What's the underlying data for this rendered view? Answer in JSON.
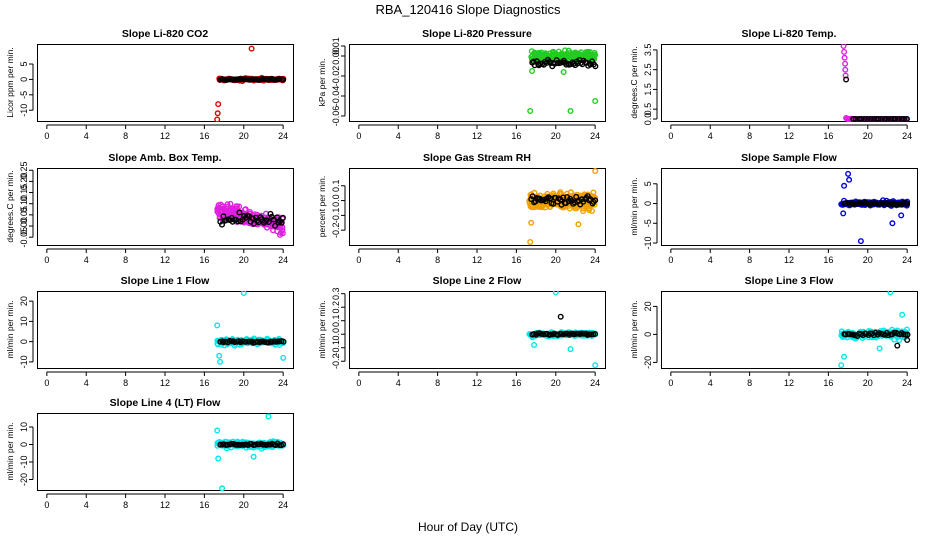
{
  "figure": {
    "title": "RBA_120416  Slope Diagnostics",
    "xlabel": "Hour of Day (UTC)",
    "colors": {
      "red": "#e00000",
      "green": "#22cc22",
      "magenta": "#e020e0",
      "orange": "#f0a000",
      "blue": "#0000dd",
      "cyan": "#00e8e8",
      "black": "#000000"
    }
  },
  "chart_data": [
    {
      "type": "scatter",
      "title": "Slope Li-820 CO2",
      "ylabel": "Licor ppm per min.",
      "xlim": [
        -1,
        25
      ],
      "ylim": [
        -13.5,
        11.5
      ],
      "xticks": [
        "0",
        "4",
        "8",
        "12",
        "16",
        "20",
        "24"
      ],
      "xtick_values": [
        0,
        4,
        8,
        12,
        16,
        20,
        24
      ],
      "yticks": [
        "-10",
        "-5",
        "0",
        "5"
      ],
      "ytick_values": [
        -10,
        -5,
        0,
        5
      ],
      "series": [
        {
          "name": "primary",
          "color": "red",
          "x_range": [
            17.5,
            24
          ],
          "y_center": 0,
          "y_spread": 0.6,
          "count": 90,
          "extra": [
            [
              17.3,
              -13
            ],
            [
              17.35,
              -11
            ],
            [
              17.4,
              -8
            ],
            [
              20.8,
              10
            ]
          ]
        },
        {
          "name": "reference",
          "color": "black",
          "x_range": [
            17.6,
            24
          ],
          "y_center": 0,
          "y_spread": 0.3,
          "count": 40,
          "extra": []
        }
      ]
    },
    {
      "type": "scatter",
      "title": "Slope Li-820 Pressure",
      "ylabel": "kPa per min.",
      "xlim": [
        -1,
        25
      ],
      "ylim": [
        -0.065,
        0.012
      ],
      "xticks": [
        "0",
        "4",
        "8",
        "12",
        "16",
        "20",
        "24"
      ],
      "xtick_values": [
        0,
        4,
        8,
        12,
        16,
        20,
        24
      ],
      "yticks": [
        "-0.06",
        "-0.04",
        "-0.02",
        "0.00",
        "0.01"
      ],
      "ytick_values": [
        -0.06,
        -0.04,
        -0.02,
        0.0,
        0.01
      ],
      "series": [
        {
          "name": "primary",
          "color": "green",
          "x_range": [
            17.5,
            24
          ],
          "y_center": 0.0,
          "y_spread": 0.008,
          "count": 160,
          "extra": [
            [
              17.4,
              -0.055
            ],
            [
              21.5,
              -0.055
            ],
            [
              24,
              -0.045
            ],
            [
              17.6,
              -0.015
            ],
            [
              20.8,
              -0.016
            ]
          ]
        },
        {
          "name": "reference",
          "color": "black",
          "x_range": [
            17.6,
            24
          ],
          "y_center": -0.007,
          "y_spread": 0.006,
          "count": 45,
          "extra": []
        }
      ]
    },
    {
      "type": "scatter",
      "title": "Slope Li-820 Temp.",
      "ylabel": "degrees.C per min.",
      "xlim": [
        -1,
        25
      ],
      "ylim": [
        -0.1,
        3.8
      ],
      "xticks": [
        "0",
        "4",
        "8",
        "12",
        "16",
        "20",
        "24"
      ],
      "xtick_values": [
        0,
        4,
        8,
        12,
        16,
        20,
        24
      ],
      "yticks": [
        "0.0",
        "0.5",
        "1.5",
        "2.5",
        "3.5"
      ],
      "ytick_values": [
        0.0,
        0.5,
        1.5,
        2.5,
        3.5
      ],
      "series": [
        {
          "name": "primary",
          "color": "magenta",
          "x_range": [
            17.9,
            24
          ],
          "y_center": 0,
          "y_spread": 0.0,
          "count": 60,
          "extra": [
            [
              17.55,
              3.7
            ],
            [
              17.6,
              3.4
            ],
            [
              17.65,
              3.1
            ],
            [
              17.7,
              2.8
            ],
            [
              17.72,
              2.5
            ],
            [
              17.75,
              2.2
            ],
            [
              17.8,
              0.05
            ]
          ]
        },
        {
          "name": "reference",
          "color": "black",
          "x_range": [
            18.5,
            24
          ],
          "y_center": 0,
          "y_spread": 0.0,
          "count": 20,
          "extra": [
            [
              17.8,
              2.0
            ]
          ]
        }
      ]
    },
    {
      "type": "scatter",
      "title": "Slope Amb. Box Temp.",
      "ylabel": "degrees.C per min.",
      "xlim": [
        -1,
        25
      ],
      "ylim": [
        -0.085,
        0.26
      ],
      "xticks": [
        "0",
        "4",
        "8",
        "12",
        "16",
        "20",
        "24"
      ],
      "xtick_values": [
        0,
        4,
        8,
        12,
        16,
        20,
        24
      ],
      "yticks": [
        "-0.05",
        "0.00",
        "0.05",
        "0.10",
        "0.15",
        "0.20",
        "0.25"
      ],
      "ytick_values": [
        -0.05,
        0.0,
        0.05,
        0.1,
        0.15,
        0.2,
        0.25
      ],
      "series": [
        {
          "name": "primary",
          "color": "magenta",
          "x_range": [
            17.3,
            24
          ],
          "y_center": 0.07,
          "y_spread": 0.06,
          "count": 190,
          "trend": -0.01,
          "extra": []
        },
        {
          "name": "reference",
          "color": "black",
          "x_range": [
            17.6,
            24
          ],
          "y_center": 0.03,
          "y_spread": 0.05,
          "count": 40,
          "extra": []
        }
      ]
    },
    {
      "type": "scatter",
      "title": "Slope Gas Stream RH",
      "ylabel": "percent per min.",
      "xlim": [
        -1,
        25
      ],
      "ylim": [
        -0.3,
        0.22
      ],
      "xticks": [
        "0",
        "4",
        "8",
        "12",
        "16",
        "20",
        "24"
      ],
      "xtick_values": [
        0,
        4,
        8,
        12,
        16,
        20,
        24
      ],
      "yticks": [
        "-0.2",
        "-0.1",
        "0.0",
        "0.1"
      ],
      "ytick_values": [
        -0.2,
        -0.1,
        0.0,
        0.1
      ],
      "series": [
        {
          "name": "primary",
          "color": "orange",
          "x_range": [
            17.3,
            24
          ],
          "y_center": 0.0,
          "y_spread": 0.09,
          "count": 260,
          "extra": [
            [
              17.4,
              -0.28
            ],
            [
              17.5,
              -0.15
            ],
            [
              24,
              0.2
            ],
            [
              22.3,
              -0.16
            ]
          ]
        },
        {
          "name": "reference",
          "color": "black",
          "x_range": [
            17.5,
            24
          ],
          "y_center": 0.0,
          "y_spread": 0.07,
          "count": 45,
          "extra": []
        }
      ]
    },
    {
      "type": "scatter",
      "title": "Slope Sample Flow",
      "ylabel": "ml/min per min.",
      "xlim": [
        -1,
        25
      ],
      "ylim": [
        -10.5,
        9
      ],
      "xticks": [
        "0",
        "4",
        "8",
        "12",
        "16",
        "20",
        "24"
      ],
      "xtick_values": [
        0,
        4,
        8,
        12,
        16,
        20,
        24
      ],
      "yticks": [
        "-10",
        "-5",
        "0",
        "5"
      ],
      "ytick_values": [
        -10,
        -5,
        0,
        5
      ],
      "series": [
        {
          "name": "primary",
          "color": "blue",
          "x_range": [
            17.3,
            24
          ],
          "y_center": 0.0,
          "y_spread": 0.9,
          "count": 150,
          "extra": [
            [
              18.0,
              7.5
            ],
            [
              18.1,
              6.0
            ],
            [
              17.6,
              4.5
            ],
            [
              17.5,
              -2.5
            ],
            [
              19.3,
              -9.5
            ],
            [
              22.5,
              -5
            ],
            [
              23.4,
              -3
            ]
          ]
        },
        {
          "name": "reference",
          "color": "black",
          "x_range": [
            17.6,
            24
          ],
          "y_center": 0.0,
          "y_spread": 0.3,
          "count": 40,
          "extra": []
        }
      ]
    },
    {
      "type": "scatter",
      "title": "Slope Line 1 Flow",
      "ylabel": "ml/min per min.",
      "xlim": [
        -1,
        25
      ],
      "ylim": [
        -13,
        25
      ],
      "xticks": [
        "0",
        "4",
        "8",
        "12",
        "16",
        "20",
        "24"
      ],
      "xtick_values": [
        0,
        4,
        8,
        12,
        16,
        20,
        24
      ],
      "yticks": [
        "-10",
        "0",
        "10",
        "20"
      ],
      "ytick_values": [
        -10,
        0,
        10,
        20
      ],
      "series": [
        {
          "name": "primary",
          "color": "cyan",
          "x_range": [
            17.3,
            24
          ],
          "y_center": 0.0,
          "y_spread": 2.5,
          "count": 140,
          "extra": [
            [
              20.0,
              24
            ],
            [
              17.3,
              8
            ],
            [
              17.5,
              -7
            ],
            [
              17.6,
              -10
            ],
            [
              24.0,
              -8
            ]
          ]
        },
        {
          "name": "reference",
          "color": "black",
          "x_range": [
            17.6,
            24
          ],
          "y_center": 0.0,
          "y_spread": 0.6,
          "count": 35,
          "extra": []
        }
      ]
    },
    {
      "type": "scatter",
      "title": "Slope Line 2 Flow",
      "ylabel": "ml/min per min.",
      "xlim": [
        -1,
        25
      ],
      "ylim": [
        -0.25,
        0.32
      ],
      "xticks": [
        "0",
        "4",
        "8",
        "12",
        "16",
        "20",
        "24"
      ],
      "xtick_values": [
        0,
        4,
        8,
        12,
        16,
        20,
        24
      ],
      "yticks": [
        "-0.2",
        "-0.1",
        "0.0",
        "0.1",
        "0.2",
        "0.3"
      ],
      "ytick_values": [
        -0.2,
        -0.1,
        0.0,
        0.1,
        0.2,
        0.3
      ],
      "series": [
        {
          "name": "primary",
          "color": "cyan",
          "x_range": [
            17.3,
            24
          ],
          "y_center": 0.0,
          "y_spread": 0.025,
          "count": 140,
          "extra": [
            [
              20.0,
              0.31
            ],
            [
              24.0,
              -0.23
            ],
            [
              17.8,
              -0.08
            ],
            [
              21.5,
              -0.11
            ]
          ]
        },
        {
          "name": "reference",
          "color": "black",
          "x_range": [
            17.6,
            24
          ],
          "y_center": 0.0,
          "y_spread": 0.01,
          "count": 35,
          "extra": [
            [
              20.5,
              0.13
            ]
          ]
        }
      ]
    },
    {
      "type": "scatter",
      "title": "Slope Line 3 Flow",
      "ylabel": "ml/min per min.",
      "xlim": [
        -1,
        25
      ],
      "ylim": [
        -24,
        31
      ],
      "xticks": [
        "0",
        "4",
        "8",
        "12",
        "16",
        "20",
        "24"
      ],
      "xtick_values": [
        0,
        4,
        8,
        12,
        16,
        20,
        24
      ],
      "yticks": [
        "-20",
        "0",
        "20"
      ],
      "ytick_values": [
        -20,
        0,
        20
      ],
      "series": [
        {
          "name": "primary",
          "color": "cyan",
          "x_range": [
            17.3,
            24
          ],
          "y_center": 0.0,
          "y_spread": 5.5,
          "count": 140,
          "extra": [
            [
              22.3,
              30
            ],
            [
              17.3,
              -22
            ],
            [
              17.6,
              -16
            ],
            [
              23.5,
              14
            ],
            [
              21.2,
              -10
            ]
          ]
        },
        {
          "name": "reference",
          "color": "black",
          "x_range": [
            17.6,
            24
          ],
          "y_center": 0.0,
          "y_spread": 2.5,
          "count": 35,
          "extra": [
            [
              23.0,
              -8
            ],
            [
              24.0,
              -4
            ]
          ]
        }
      ]
    },
    {
      "type": "scatter",
      "title": "Slope Line 4 (LT) Flow",
      "ylabel": "ml/min per min.",
      "xlim": [
        -1,
        25
      ],
      "ylim": [
        -26,
        18
      ],
      "xticks": [
        "0",
        "4",
        "8",
        "12",
        "16",
        "20",
        "24"
      ],
      "xtick_values": [
        0,
        4,
        8,
        12,
        16,
        20,
        24
      ],
      "yticks": [
        "-20",
        "-10",
        "0",
        "10"
      ],
      "ytick_values": [
        -20,
        -10,
        0,
        10
      ],
      "series": [
        {
          "name": "primary",
          "color": "cyan",
          "x_range": [
            17.3,
            24
          ],
          "y_center": 0.0,
          "y_spread": 3.0,
          "count": 140,
          "extra": [
            [
              17.8,
              -25
            ],
            [
              22.5,
              16
            ],
            [
              17.3,
              8
            ],
            [
              17.4,
              -8
            ],
            [
              21.0,
              -7
            ]
          ]
        },
        {
          "name": "reference",
          "color": "black",
          "x_range": [
            17.6,
            24
          ],
          "y_center": 0.0,
          "y_spread": 0.8,
          "count": 35,
          "extra": []
        }
      ]
    }
  ]
}
